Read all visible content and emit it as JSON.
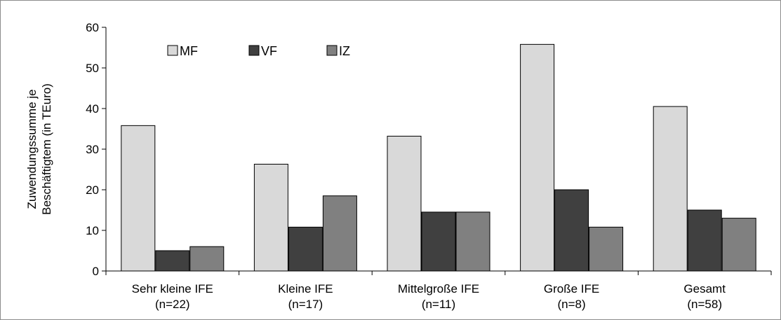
{
  "chart_data": {
    "type": "bar",
    "title": "",
    "xlabel": "",
    "ylabel": [
      "Zuwendungssumme je",
      "Beschäftigtem (in TEuro)"
    ],
    "ylim": [
      0,
      60
    ],
    "yticks": [
      0,
      10,
      20,
      30,
      40,
      50,
      60
    ],
    "grid": false,
    "legend_position": "top-left",
    "categories": [
      [
        "Sehr kleine IFE",
        "(n=22)"
      ],
      [
        "Kleine IFE",
        "(n=17)"
      ],
      [
        "Mittelgroße IFE",
        "(n=11)"
      ],
      [
        "Große IFE",
        "(n=8)"
      ],
      [
        "Gesamt",
        "(n=58)"
      ]
    ],
    "series": [
      {
        "name": "MF",
        "color": "#d9d9d9",
        "values": [
          35.8,
          26.3,
          33.2,
          55.8,
          40.5
        ]
      },
      {
        "name": "VF",
        "color": "#404040",
        "values": [
          5.0,
          10.8,
          14.5,
          20.0,
          15.0
        ]
      },
      {
        "name": "IZ",
        "color": "#808080",
        "values": [
          6.0,
          18.5,
          14.5,
          10.8,
          13.0
        ]
      }
    ]
  }
}
